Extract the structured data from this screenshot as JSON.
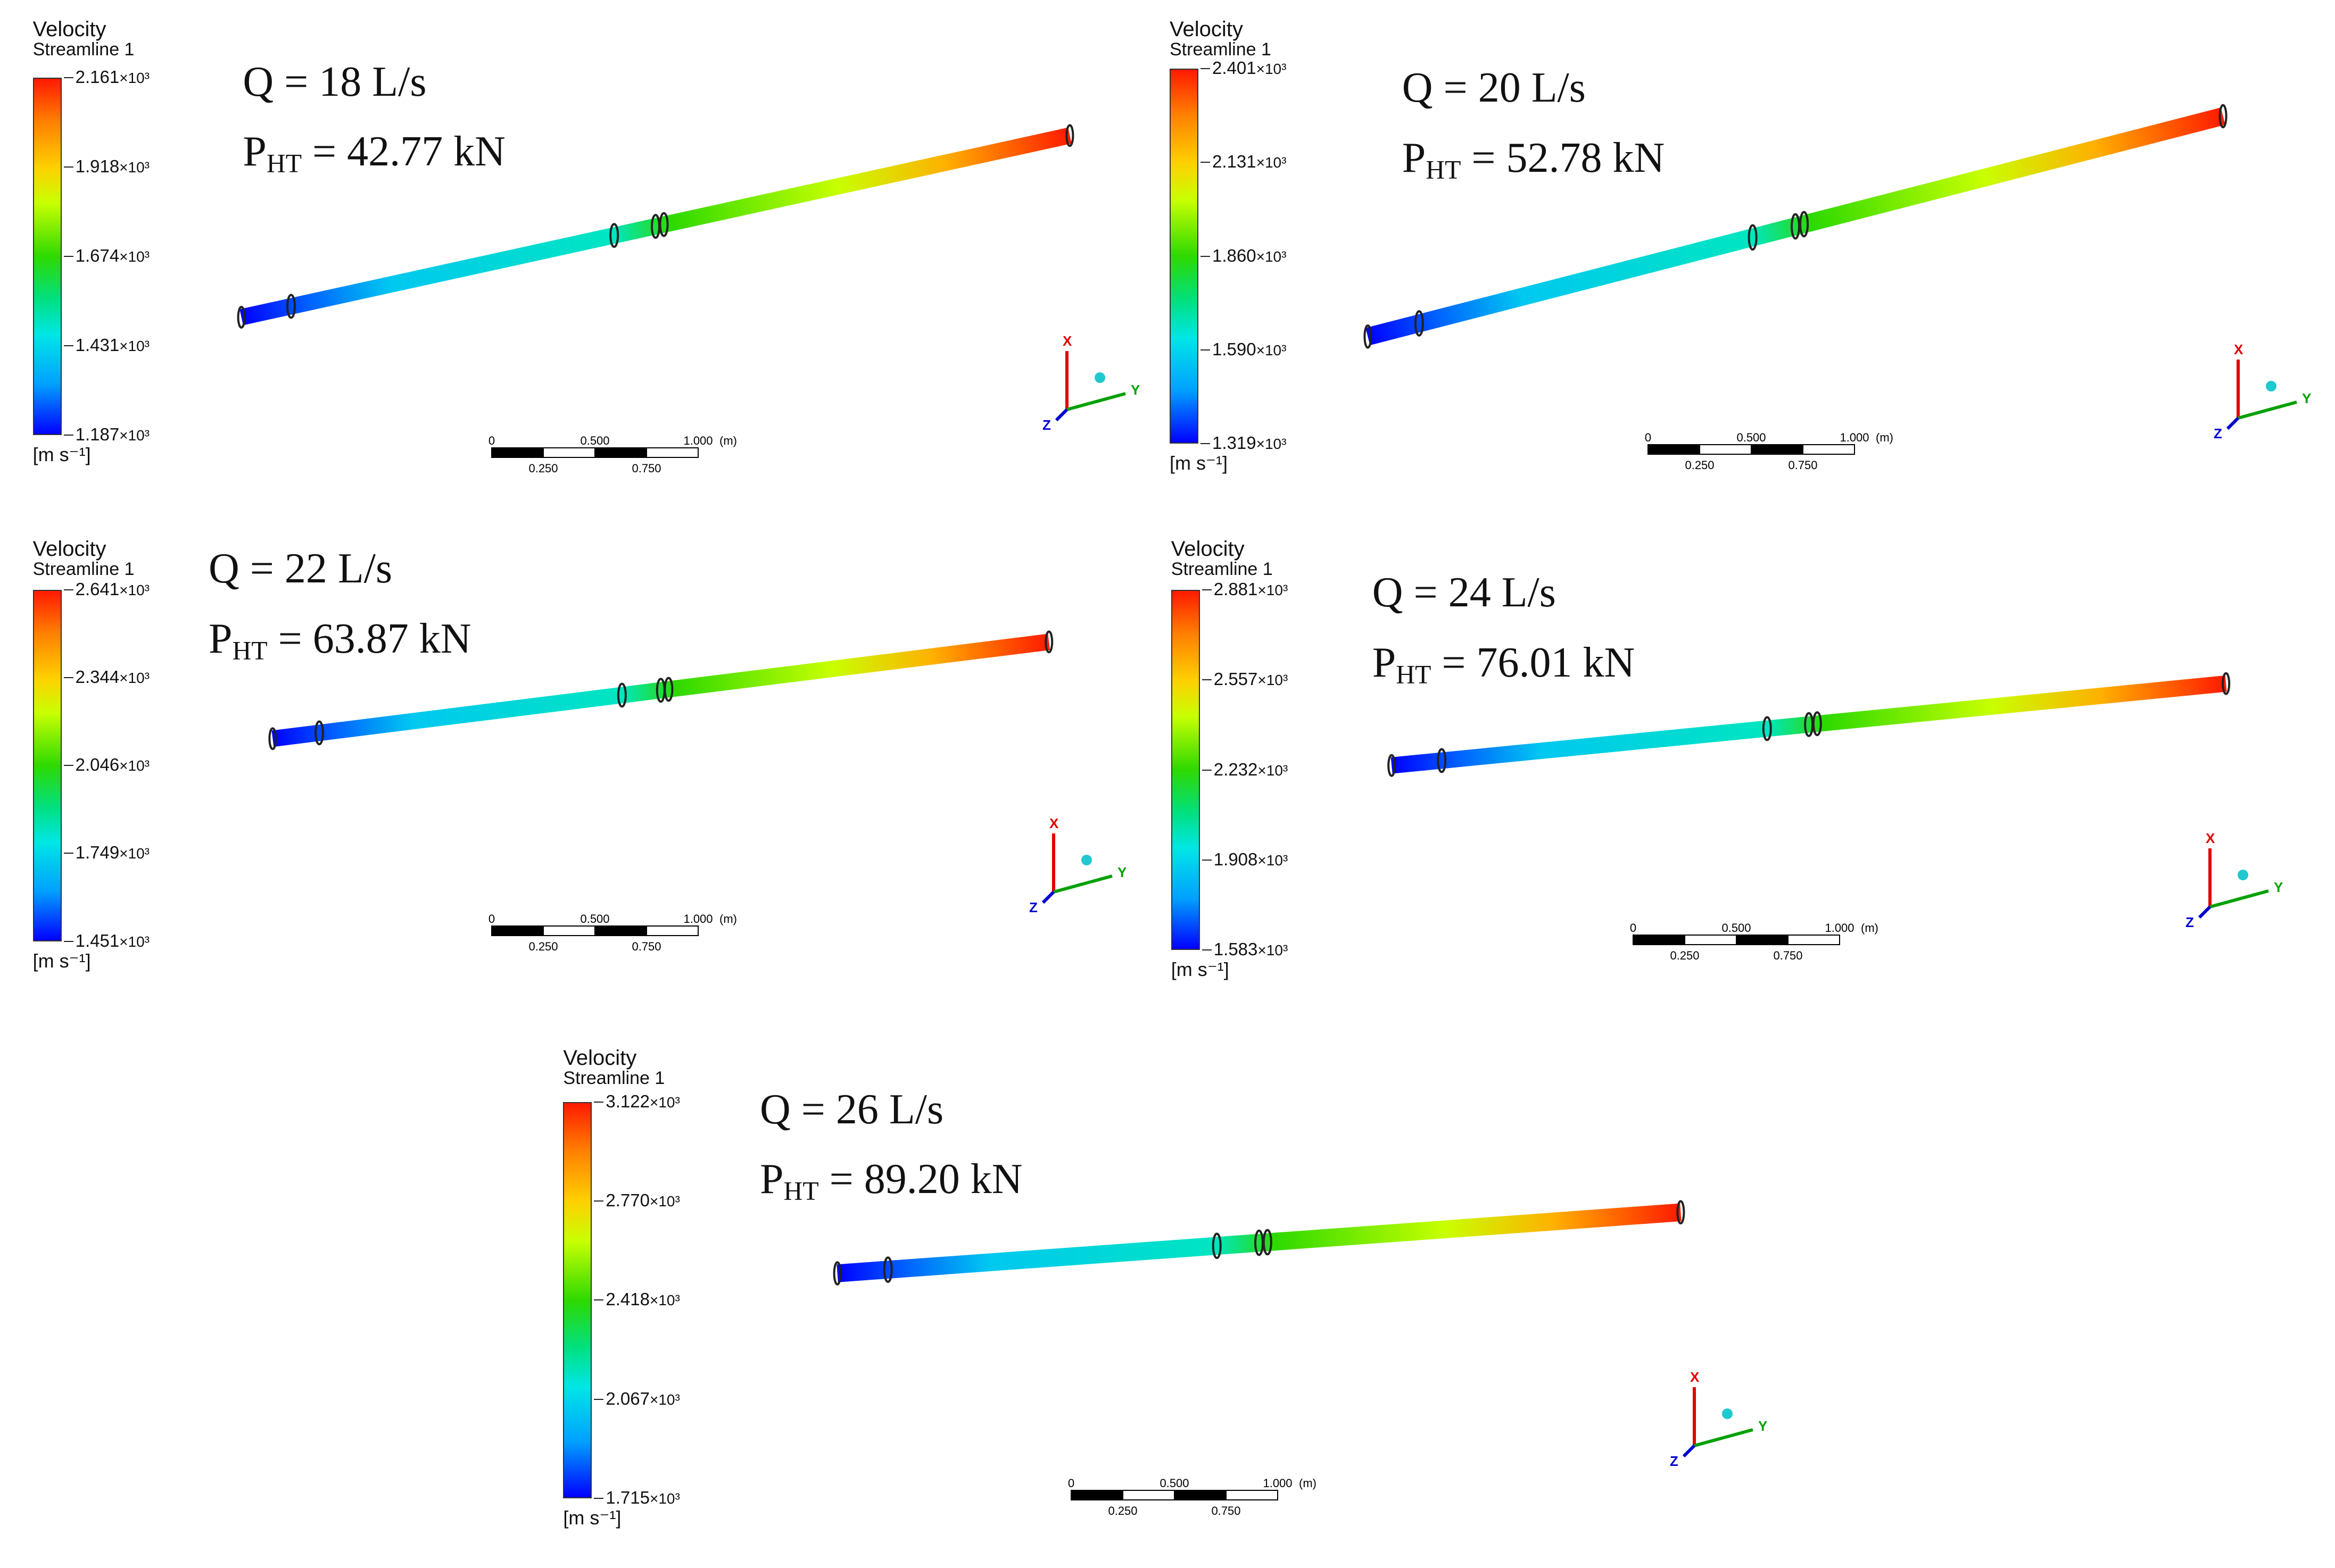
{
  "legend": {
    "title_line1": "Velocity",
    "title_line2": "Streamline 1",
    "units": "[m s⁻¹]"
  },
  "cases": [
    {
      "q_label": "Q = 18 L/s",
      "p_label": "P",
      "p_sub": "HT",
      "p_value": " = 42.77 kN",
      "ticks": [
        "2.161",
        "1.918",
        "1.674",
        "1.431",
        "1.187"
      ]
    },
    {
      "q_label": "Q = 20 L/s",
      "p_label": "P",
      "p_sub": "HT",
      "p_value": " = 52.78 kN",
      "ticks": [
        "2.401",
        "2.131",
        "1.860",
        "1.590",
        "1.319"
      ]
    },
    {
      "q_label": "Q = 22 L/s",
      "p_label": "P",
      "p_sub": "HT",
      "p_value": " = 63.87 kN",
      "ticks": [
        "2.641",
        "2.344",
        "2.046",
        "1.749",
        "1.451"
      ]
    },
    {
      "q_label": "Q = 24 L/s",
      "p_label": "P",
      "p_sub": "HT",
      "p_value": " = 76.01 kN",
      "ticks": [
        "2.881",
        "2.557",
        "2.232",
        "1.908",
        "1.583"
      ]
    },
    {
      "q_label": "Q = 26 L/s",
      "p_label": "P",
      "p_sub": "HT",
      "p_value": " = 89.20 kN",
      "ticks": [
        "3.122",
        "2.770",
        "2.418",
        "2.067",
        "1.715"
      ]
    }
  ],
  "tick_suffix": "×10³",
  "scale": {
    "top": [
      "0",
      "0.500",
      "1.000"
    ],
    "unit": "(m)",
    "bottom": [
      "0.250",
      "0.750"
    ]
  },
  "axes": {
    "x": "X",
    "y": "Y",
    "z": "Z"
  },
  "colors": {
    "low": "#0000ff",
    "mid": "#2ed900",
    "high": "#ff1a00"
  }
}
